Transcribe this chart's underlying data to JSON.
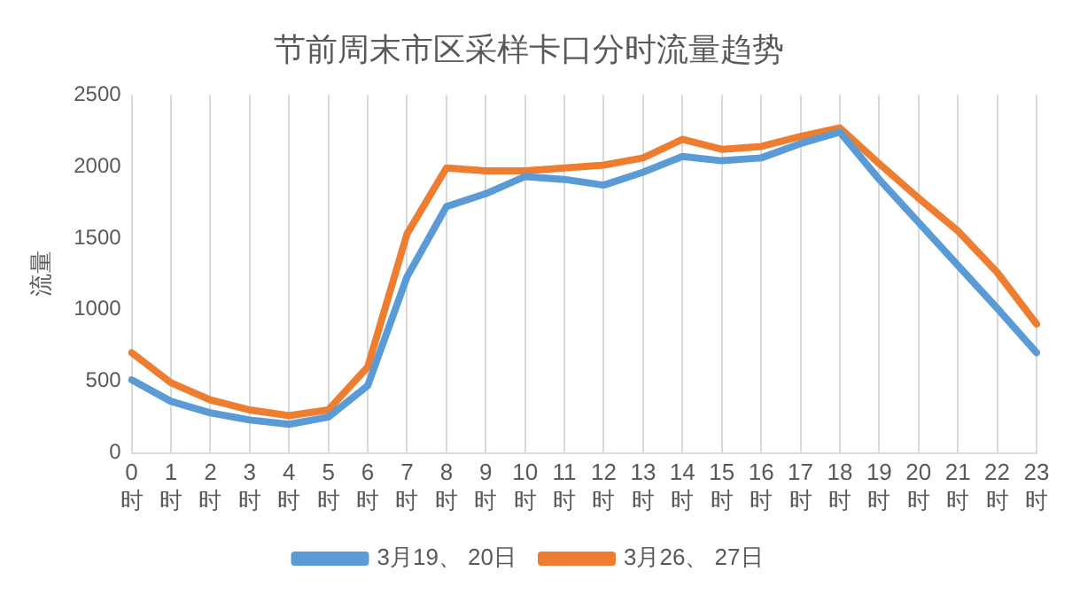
{
  "chart_data": {
    "type": "line",
    "title": "节前周末市区采样卡口分时流量趋势",
    "ylabel": "流量",
    "categories": [
      "0时",
      "1时",
      "2时",
      "3时",
      "4时",
      "5时",
      "6时",
      "7时",
      "8时",
      "9时",
      "10时",
      "11时",
      "12时",
      "13时",
      "14时",
      "15时",
      "16时",
      "17时",
      "18时",
      "19时",
      "20时",
      "21时",
      "22时",
      "23时"
    ],
    "series": [
      {
        "name": "3月19、 20日",
        "color": "#5b9bd5",
        "values": [
          510,
          360,
          280,
          230,
          200,
          250,
          470,
          1230,
          1720,
          1810,
          1930,
          1910,
          1870,
          1960,
          2070,
          2040,
          2060,
          2160,
          2240,
          1910,
          1610,
          1310,
          1010,
          700
        ]
      },
      {
        "name": "3月26、 27日",
        "color": "#ed7d31",
        "values": [
          700,
          490,
          370,
          300,
          260,
          300,
          600,
          1530,
          1990,
          1970,
          1970,
          1990,
          2010,
          2060,
          2190,
          2120,
          2140,
          2210,
          2270,
          2020,
          1780,
          1550,
          1260,
          900
        ]
      }
    ],
    "ylim": [
      0,
      2500
    ],
    "yticks": [
      0,
      500,
      1000,
      1500,
      2000,
      2500
    ],
    "grid": "x",
    "legend": "bottom",
    "marker": "none",
    "line_style": "solid"
  }
}
